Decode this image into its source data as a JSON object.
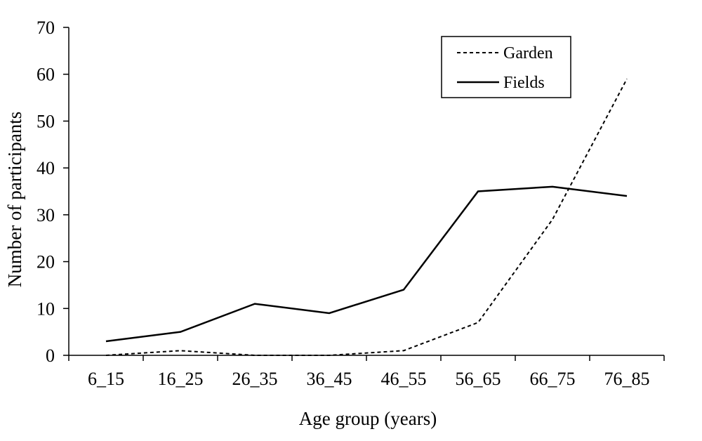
{
  "chart_data": {
    "type": "line",
    "title": "",
    "xlabel": "Age group (years)",
    "ylabel": "Number of participants",
    "categories": [
      "6_15",
      "16_25",
      "26_35",
      "36_45",
      "46_55",
      "56_65",
      "66_75",
      "76_85"
    ],
    "ylim": [
      0,
      70
    ],
    "yticks": [
      "0",
      "10",
      "20",
      "30",
      "40",
      "50",
      "60",
      "70"
    ],
    "grid": false,
    "legend_position": "top-right",
    "series": [
      {
        "name": "Garden",
        "style": "dashed",
        "color": "#000000",
        "values": [
          0,
          1,
          0,
          0,
          1,
          7,
          29,
          59
        ]
      },
      {
        "name": "Fields",
        "style": "solid",
        "color": "#000000",
        "values": [
          3,
          5,
          11,
          9,
          14,
          35,
          36,
          34
        ]
      }
    ]
  }
}
